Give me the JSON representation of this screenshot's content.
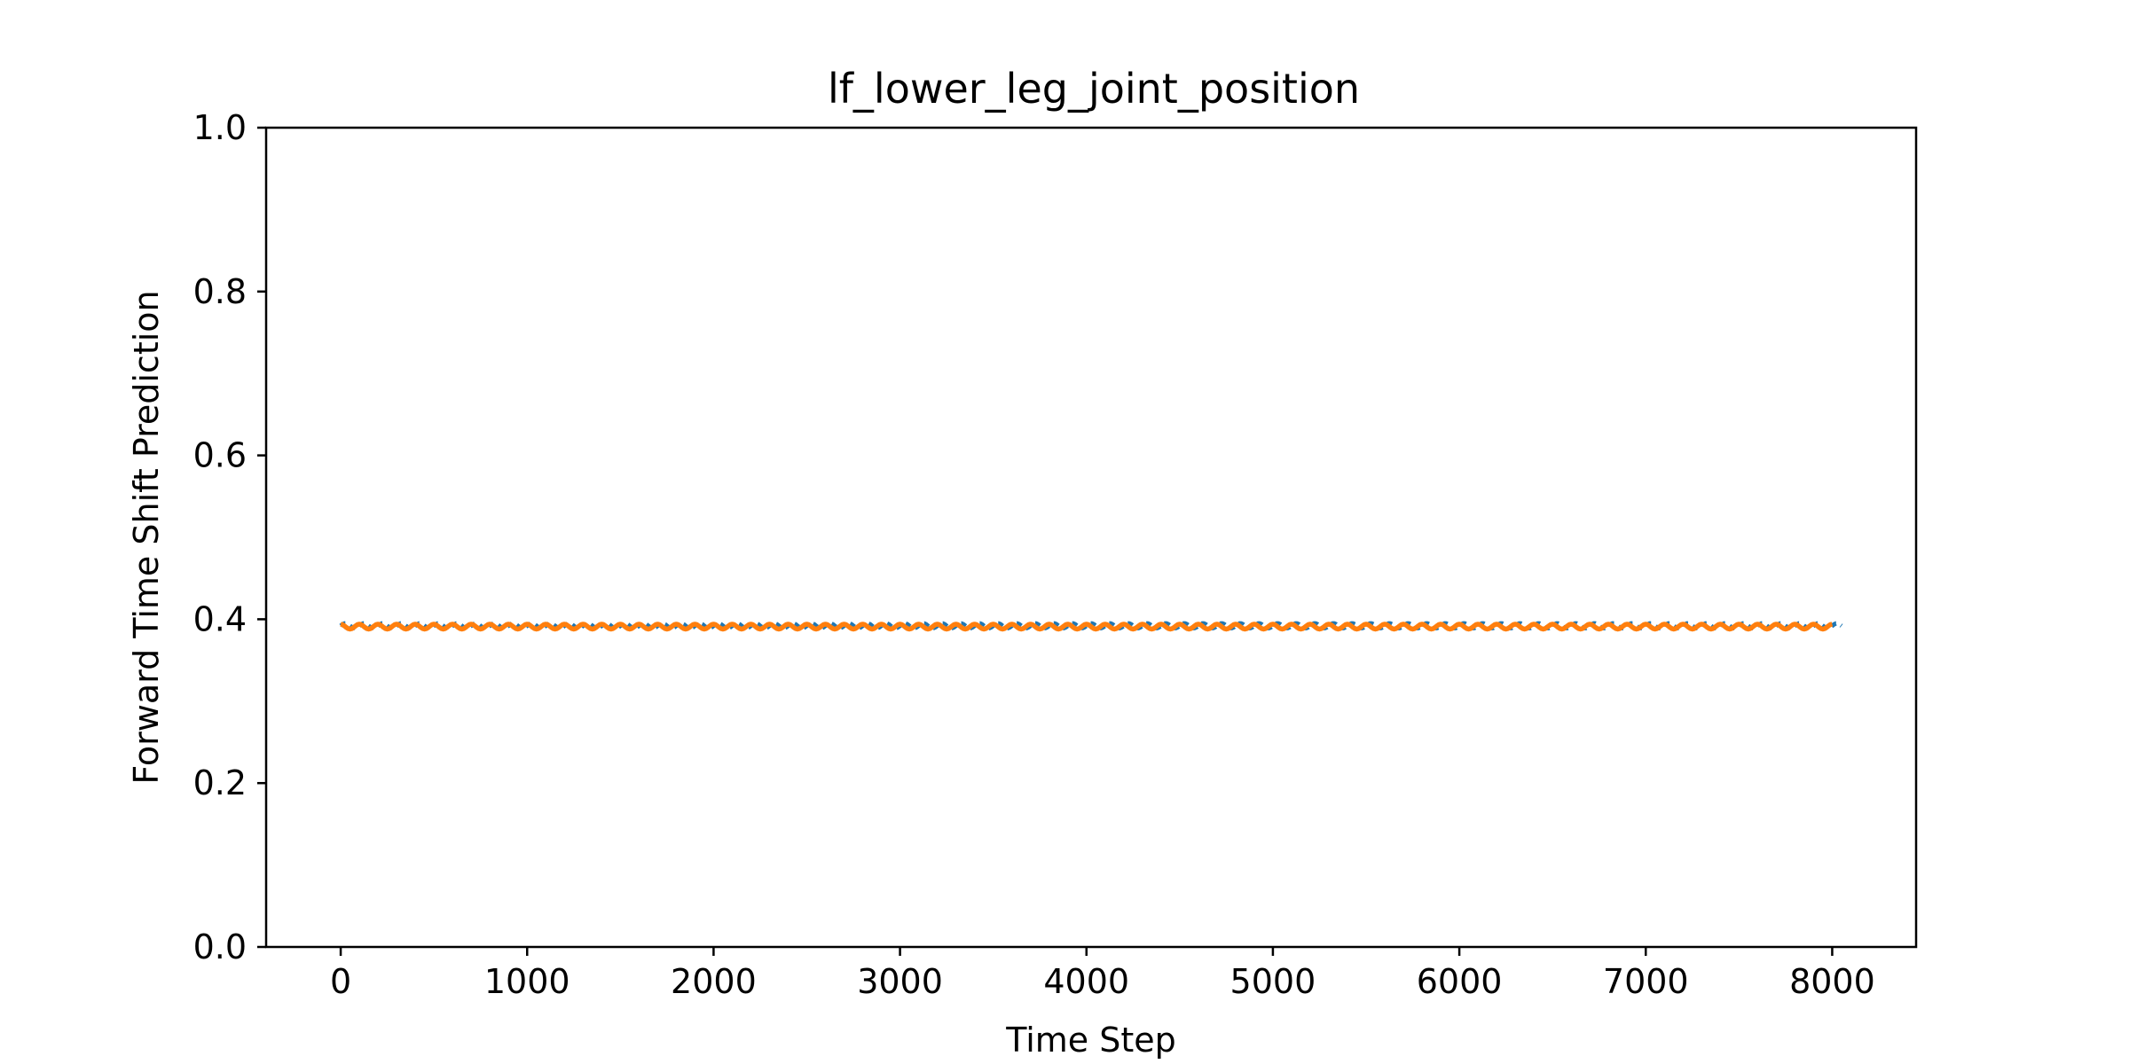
{
  "chart_data": {
    "type": "line",
    "title": "lf_lower_leg_joint_position",
    "xlabel": "Time Step",
    "ylabel": "Forward Time Shift Prediction",
    "xlim": [
      -400,
      8450
    ],
    "ylim": [
      0.0,
      1.0
    ],
    "xticks": [
      0,
      1000,
      2000,
      3000,
      4000,
      5000,
      6000,
      7000,
      8000
    ],
    "xtick_labels": [
      "0",
      "1000",
      "2000",
      "3000",
      "4000",
      "5000",
      "6000",
      "7000",
      "8000"
    ],
    "yticks": [
      0.0,
      0.2,
      0.4,
      0.6,
      0.8,
      1.0
    ],
    "ytick_labels": [
      "0.0",
      "0.2",
      "0.4",
      "0.6",
      "0.8",
      "1.0"
    ],
    "grid": false,
    "legend": "none",
    "series": [
      {
        "color": "#1f77b4",
        "x_start": 0,
        "x_end": 8050,
        "baseline": 0.392,
        "amplitude": 0.003,
        "period": 100
      },
      {
        "color": "#ff7f0e",
        "x_start": 0,
        "x_end": 8000,
        "baseline": 0.391,
        "amplitude": 0.003,
        "period": 100
      }
    ]
  }
}
